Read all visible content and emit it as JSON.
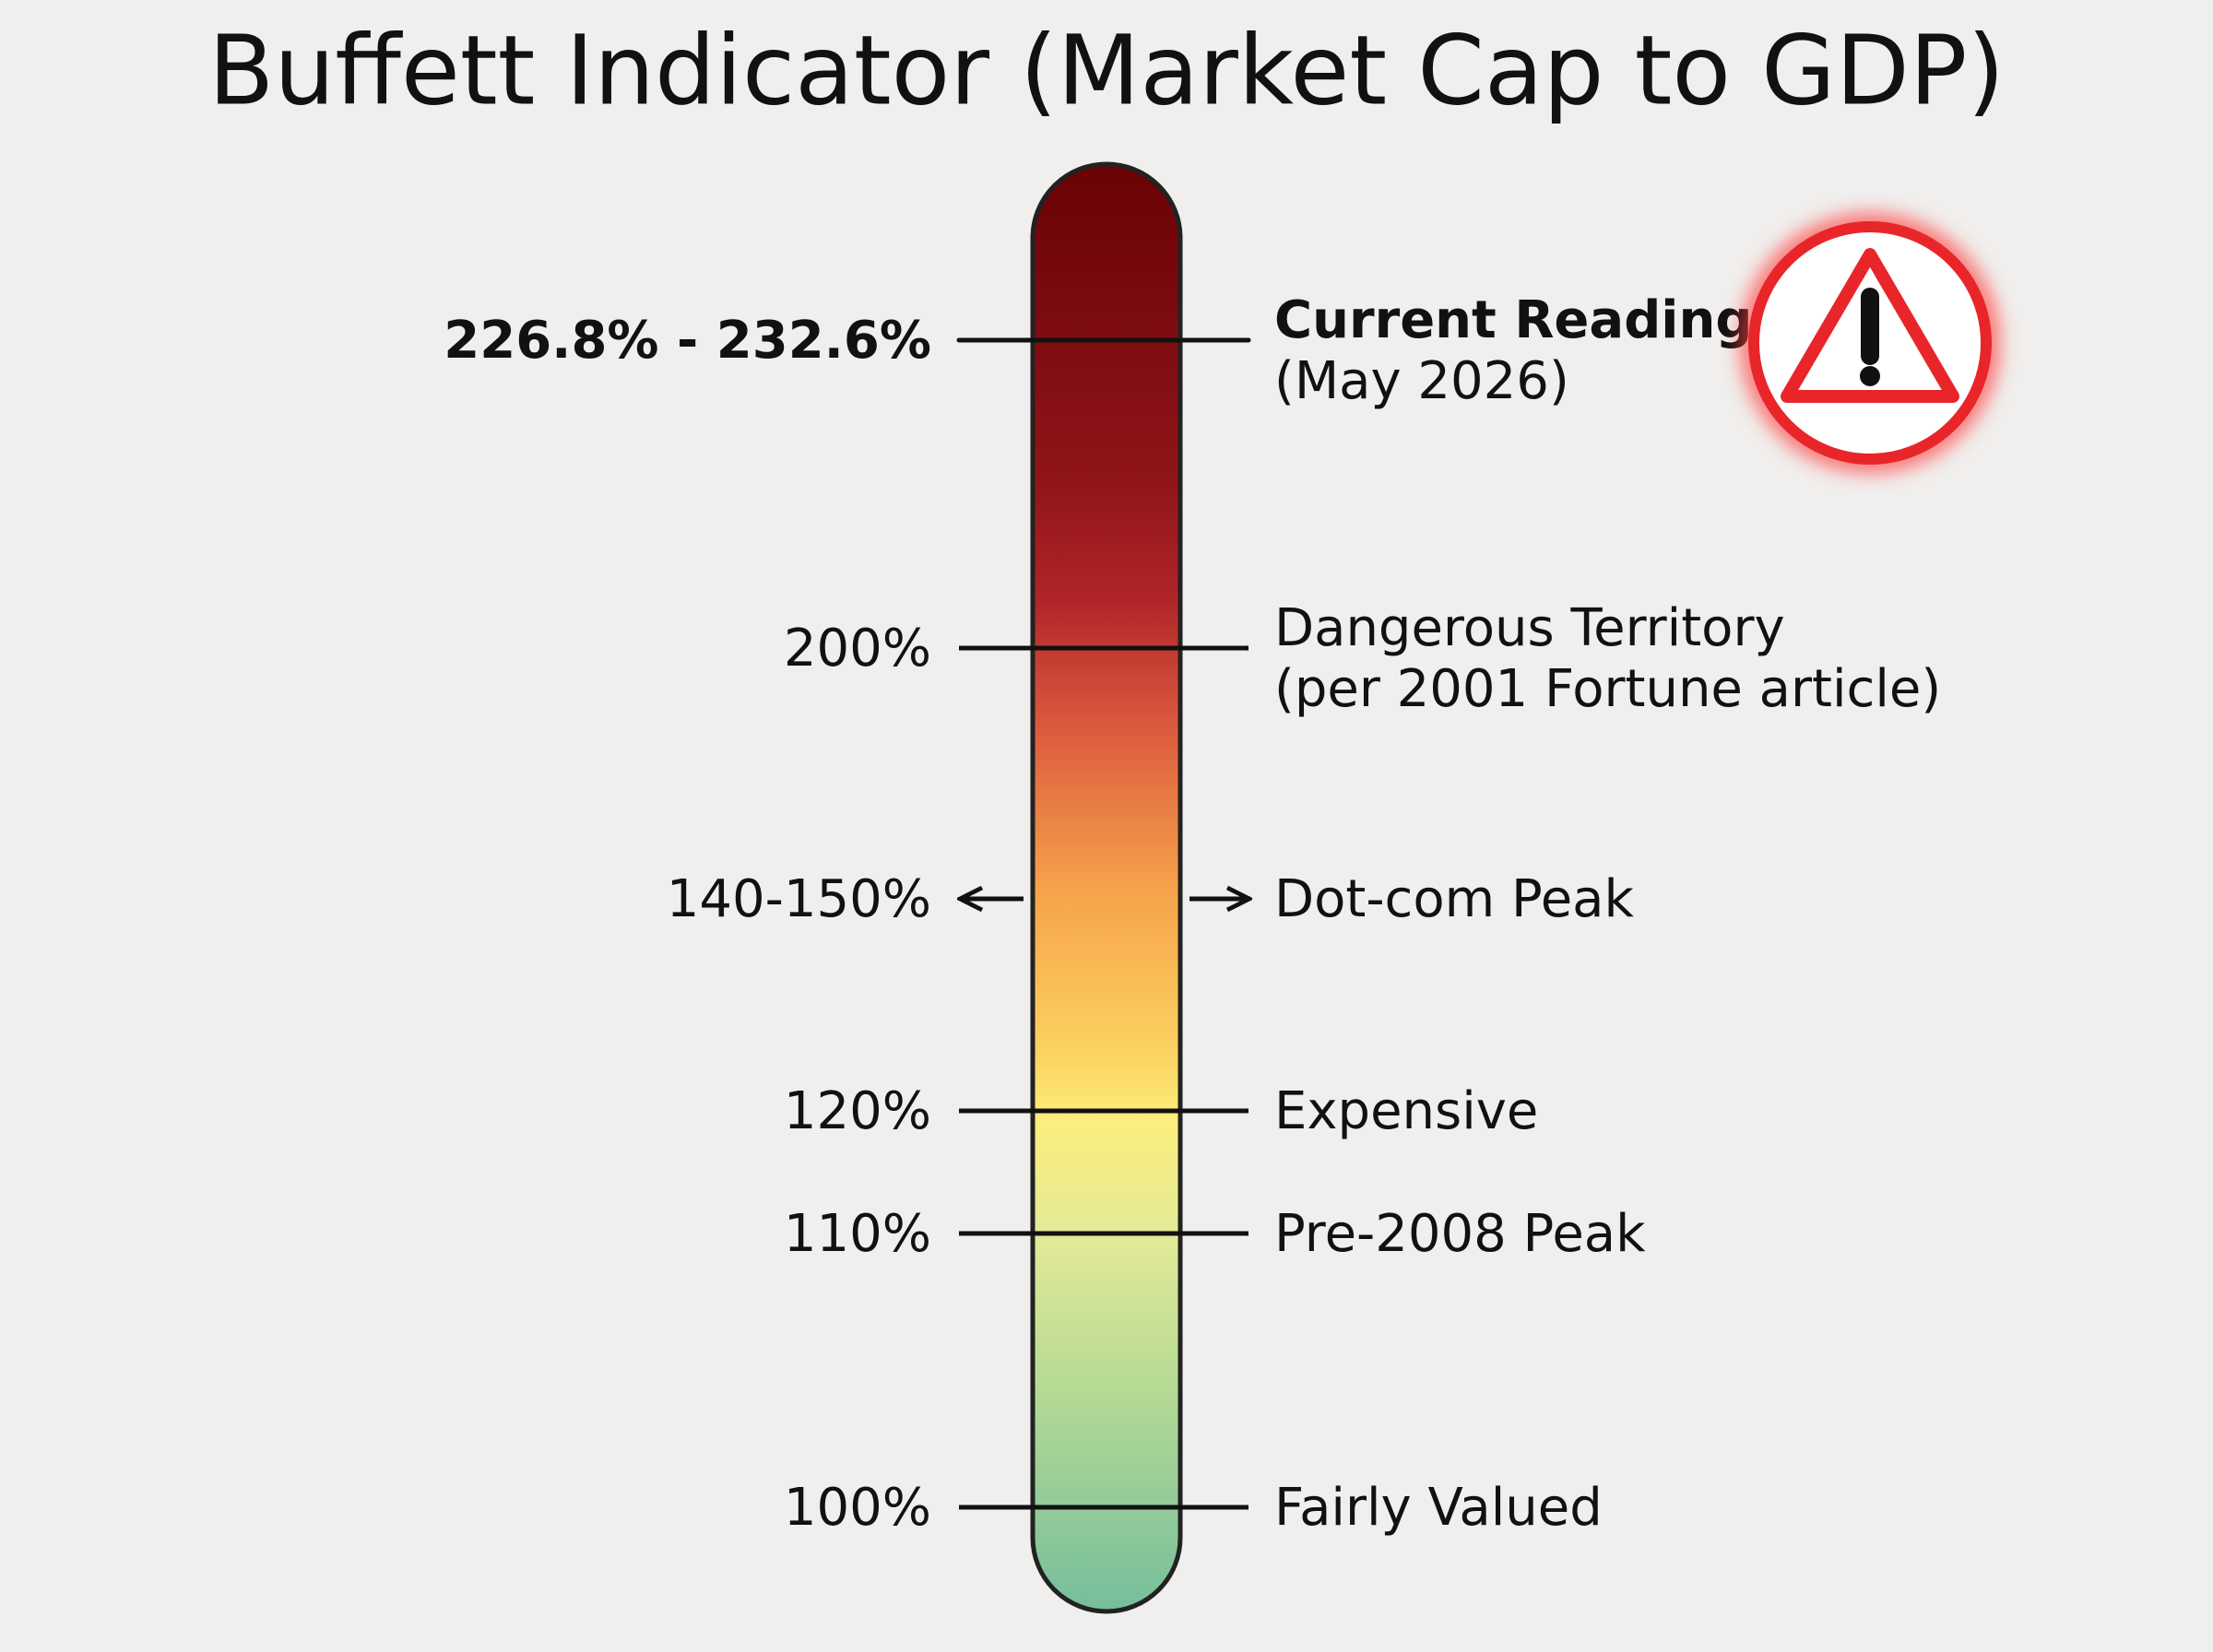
{
  "title": "Buffett Indicator (Market Cap to GDP)",
  "markers": [
    {
      "level": "226.8% - 232.6%",
      "label": "Current Reading",
      "note": "(May 2026)"
    },
    {
      "level": "200%",
      "label": "Dangerous Territory",
      "note": "(per 2001 Fortune article)"
    },
    {
      "level": "140-150%",
      "label": "Dot-com Peak"
    },
    {
      "level": "120%",
      "label": "Expensive"
    },
    {
      "level": "110%",
      "label": "Pre-2008 Peak"
    },
    {
      "level": "100%",
      "label": "Fairly Valued"
    }
  ]
}
